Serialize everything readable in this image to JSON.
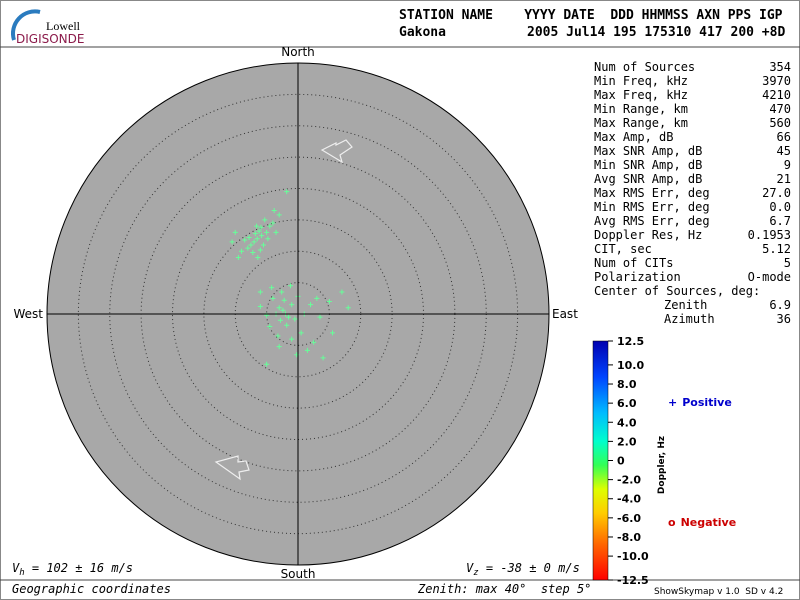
{
  "header": {
    "labels": "STATION NAME    YYYY DATE  DDD HHMMSS AXN PPS IGP",
    "station": "Gakona",
    "values": "2005 Jul14 195 175310 417 200 +8D"
  },
  "logo": {
    "top": "Lowell",
    "bottom": "DIGISONDE"
  },
  "parameters": {
    "rows": [
      [
        "Num of Sources",
        "354"
      ],
      [
        "Min Freq, kHz",
        "3970"
      ],
      [
        "Max Freq, kHz",
        "4210"
      ],
      [
        "Min Range, km",
        "470"
      ],
      [
        "Max Range, km",
        "560"
      ],
      [
        "Max Amp, dB",
        "66"
      ],
      [
        "Max SNR Amp, dB",
        "45"
      ],
      [
        "Min SNR Amp, dB",
        "9"
      ],
      [
        "Avg SNR Amp, dB",
        "21"
      ],
      [
        "Max RMS Err, deg",
        "27.0"
      ],
      [
        "Min RMS Err, deg",
        "0.0"
      ],
      [
        "Avg RMS Err, deg",
        "6.7"
      ],
      [
        "Doppler Res, Hz",
        "0.1953"
      ],
      [
        "CIT, sec",
        "5.12"
      ],
      [
        "Num of CITs",
        "5"
      ],
      [
        "Polarization",
        "O-mode"
      ],
      [
        "Center of Sources, deg:",
        ""
      ],
      [
        "Zenith",
        "6.9"
      ],
      [
        "Azimuth",
        "36"
      ]
    ]
  },
  "chart_data": {
    "type": "scatter",
    "north": "North",
    "south": "South",
    "east": "East",
    "west": "West",
    "rlim": [
      0,
      40
    ],
    "rgrid": [
      5,
      10,
      15,
      20,
      25,
      30,
      35
    ],
    "grid": true,
    "series": [
      {
        "name": "Positive",
        "color": "#0000cc",
        "marker": "+",
        "mark_color": "#66ff99",
        "x": [
          -6.5,
          -7,
          -5.8,
          -6.2,
          -7.5,
          -5,
          -6.8,
          -4.5,
          -8,
          -8.5,
          -5.5,
          -6,
          -7.2,
          -9,
          -4,
          -1.8,
          -3.8,
          -10,
          -5.3,
          -6.6,
          -3.5,
          -7.8,
          -9.5,
          -6.4,
          -4.8,
          -5.9,
          -10.5,
          -3,
          -2.4,
          -2,
          -1.5,
          -3,
          -2.8,
          -1,
          -2.2,
          -3.5,
          -1.8,
          -0.5,
          1,
          2,
          3.5,
          5,
          7,
          8,
          -4,
          -5,
          -6,
          -4.5,
          -3.2,
          -1,
          0.5,
          2.5,
          4,
          -5,
          -3,
          -2.6,
          -1.2,
          0,
          5.5,
          -6,
          -0.2,
          1.5,
          -4.2,
          3
        ],
        "y": [
          12,
          11.5,
          12.5,
          13.2,
          11,
          13,
          12.8,
          14,
          10.5,
          11.8,
          11,
          10.2,
          9.8,
          10,
          14.5,
          19.5,
          16.5,
          13,
          15,
          14,
          13,
          12.2,
          9,
          9,
          12,
          13.8,
          11.5,
          15.8,
          0.6,
          0,
          -0.5,
          1,
          -1,
          1.5,
          2.2,
          0,
          -1.8,
          -0.8,
          0,
          1.5,
          -0.5,
          2,
          3.5,
          1,
          2.5,
          -0.2,
          1.2,
          -2,
          -3.5,
          -4,
          -3,
          -4.5,
          -7,
          -8,
          -5.2,
          3.5,
          4.5,
          2.8,
          -3,
          3.5,
          -6.5,
          -5.8,
          4.2,
          2.5
        ]
      },
      {
        "name": "Negative",
        "color": "#cc0000",
        "marker": "o",
        "mark_color": "#cc0000",
        "x": [],
        "y": []
      }
    ]
  },
  "colorbar": {
    "label": "Doppler, Hz",
    "lim": [
      -12.5,
      12.5
    ],
    "ticks": [
      12.5,
      {
        "value": 10,
        "label": "10.0"
      },
      {
        "value": 8,
        "label": "8.0"
      },
      {
        "value": 6,
        "label": "6.0"
      },
      {
        "value": 4,
        "label": "4.0"
      },
      {
        "value": 2,
        "label": "2.0"
      },
      0,
      {
        "value": -2,
        "label": "-2.0"
      },
      {
        "value": -4,
        "label": "-4.0"
      },
      {
        "value": -6,
        "label": "-6.0"
      },
      {
        "value": -8,
        "label": "-8.0"
      },
      {
        "value": -10,
        "label": "-10.0"
      },
      -12.5
    ]
  },
  "footer": {
    "vh": {
      "symbol": "V",
      "sub": "h",
      "text": " = 102 ± 16 m/s"
    },
    "vz": {
      "symbol": "V",
      "sub": "z",
      "text": " = -38 ± 0 m/s"
    },
    "coords": "Geographic coordinates",
    "zenith": "Zenith: max 40°  step 5°",
    "version": "ShowSkymap v 1.0  SD v 4.2"
  }
}
